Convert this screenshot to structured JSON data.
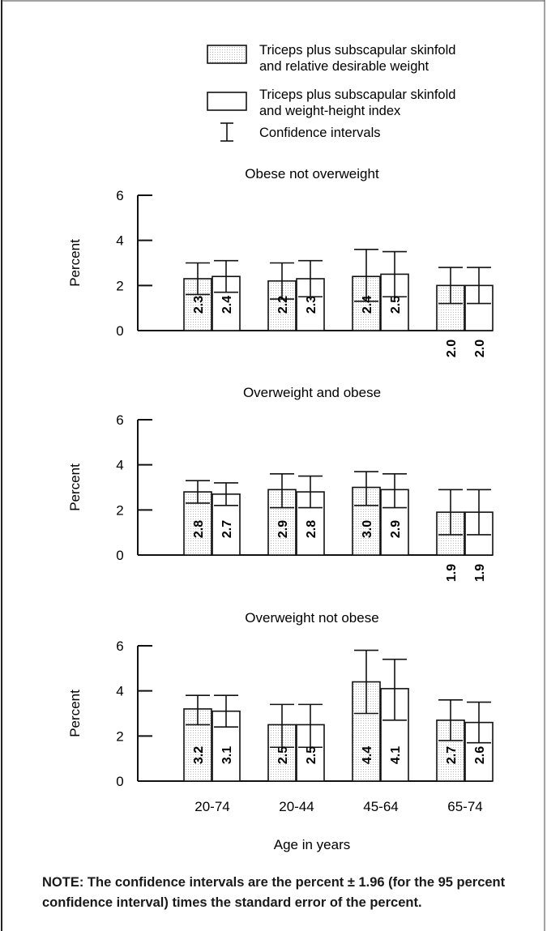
{
  "legend": {
    "items": [
      {
        "line1": "Triceps plus subscapular skinfold",
        "line2": "and relative desirable weight",
        "pattern": "dotted"
      },
      {
        "line1": "Triceps plus subscapular skinfold",
        "line2": "and weight-height index",
        "pattern": "plain"
      }
    ],
    "ci_label": "Confidence intervals"
  },
  "note": "NOTE:  The confidence intervals are the percent ± 1.96 (for the 95 percent confidence interval) times the standard error of the percent.",
  "chart_data": [
    {
      "type": "bar",
      "title": "Obese not overweight",
      "ylabel": "Percent",
      "ylim": [
        0,
        6
      ],
      "yticks": [
        "0",
        "2",
        "4",
        "6"
      ],
      "categories": [
        "20-74",
        "20-44",
        "45-64",
        "65-74"
      ],
      "series": [
        {
          "name": "Triceps plus subscapular skinfold and relative desirable weight",
          "values": [
            2.3,
            2.2,
            2.4,
            2.0
          ],
          "ci_low": [
            1.6,
            1.4,
            1.3,
            1.2
          ],
          "ci_high": [
            3.0,
            3.0,
            3.6,
            2.8
          ]
        },
        {
          "name": "Triceps plus subscapular skinfold and weight-height index",
          "values": [
            2.4,
            2.3,
            2.5,
            2.0
          ],
          "ci_low": [
            1.7,
            1.5,
            1.5,
            1.2
          ],
          "ci_high": [
            3.1,
            3.1,
            3.5,
            2.8
          ]
        }
      ],
      "data_labels": [
        [
          "2.3",
          "2.2",
          "2.4",
          "2.0"
        ],
        [
          "2.4",
          "2.3",
          "2.5",
          "2.0"
        ]
      ]
    },
    {
      "type": "bar",
      "title": "Overweight and obese",
      "ylabel": "Percent",
      "ylim": [
        0,
        6
      ],
      "yticks": [
        "0",
        "2",
        "4",
        "6"
      ],
      "categories": [
        "20-74",
        "20-44",
        "45-64",
        "65-74"
      ],
      "series": [
        {
          "name": "Triceps plus subscapular skinfold and relative desirable weight",
          "values": [
            2.8,
            2.9,
            3.0,
            1.9
          ],
          "ci_low": [
            2.3,
            2.1,
            2.2,
            0.9
          ],
          "ci_high": [
            3.3,
            3.6,
            3.7,
            2.9
          ]
        },
        {
          "name": "Triceps plus subscapular skinfold and weight-height index",
          "values": [
            2.7,
            2.8,
            2.9,
            1.9
          ],
          "ci_low": [
            2.2,
            2.1,
            2.1,
            0.9
          ],
          "ci_high": [
            3.2,
            3.5,
            3.6,
            2.9
          ]
        }
      ],
      "data_labels": [
        [
          "2.8",
          "2.9",
          "3.0",
          "1.9"
        ],
        [
          "2.7",
          "2.8",
          "2.9",
          "1.9"
        ]
      ]
    },
    {
      "type": "bar",
      "title": "Overweight not obese",
      "ylabel": "Percent",
      "ylim": [
        0,
        6
      ],
      "yticks": [
        "0",
        "2",
        "4",
        "6"
      ],
      "categories": [
        "20-74",
        "20-44",
        "45-64",
        "65-74"
      ],
      "xlabel": "Age in years",
      "series": [
        {
          "name": "Triceps plus subscapular skinfold and relative desirable weight",
          "values": [
            3.2,
            2.5,
            4.4,
            2.7
          ],
          "ci_low": [
            2.5,
            1.5,
            3.0,
            1.8
          ],
          "ci_high": [
            3.8,
            3.4,
            5.8,
            3.6
          ]
        },
        {
          "name": "Triceps plus subscapular skinfold and weight-height index",
          "values": [
            3.1,
            2.5,
            4.1,
            2.6
          ],
          "ci_low": [
            2.4,
            1.5,
            2.7,
            1.7
          ],
          "ci_high": [
            3.8,
            3.4,
            5.4,
            3.5
          ]
        }
      ],
      "data_labels": [
        [
          "3.2",
          "2.5",
          "4.4",
          "2.7"
        ],
        [
          "3.1",
          "2.5",
          "4.1",
          "2.6"
        ]
      ]
    }
  ]
}
